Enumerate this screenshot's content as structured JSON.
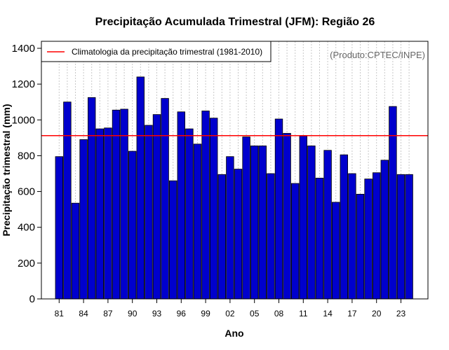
{
  "chart_data": {
    "type": "bar",
    "title": "Precipitação Acumulada Trimestral (JFM): Região 26",
    "xlabel": "Ano",
    "ylabel": "Precipitação trimestral (mm)",
    "source": "(Produto:CPTEC/INPE)",
    "legend": {
      "label": "Climatologia da precipitação trimestral (1981-2010)",
      "position": "top-left"
    },
    "ylim": [
      0,
      1450
    ],
    "yticks": [
      0,
      200,
      400,
      600,
      800,
      1000,
      1200,
      1400
    ],
    "xtick_labels": [
      "81",
      "84",
      "87",
      "90",
      "93",
      "96",
      "99",
      "02",
      "05",
      "08",
      "11",
      "14",
      "17",
      "20",
      "23"
    ],
    "xtick_every": 3,
    "categories": [
      "1981",
      "1982",
      "1983",
      "1984",
      "1985",
      "1986",
      "1987",
      "1988",
      "1989",
      "1990",
      "1991",
      "1992",
      "1993",
      "1994",
      "1995",
      "1996",
      "1997",
      "1998",
      "1999",
      "2000",
      "2001",
      "2002",
      "2003",
      "2004",
      "2005",
      "2006",
      "2007",
      "2008",
      "2009",
      "2010",
      "2011",
      "2012",
      "2013",
      "2014",
      "2015",
      "2016",
      "2017",
      "2018",
      "2019",
      "2020",
      "2021",
      "2022",
      "2023",
      "2024"
    ],
    "values": [
      795,
      1100,
      535,
      890,
      1125,
      950,
      955,
      1055,
      1060,
      825,
      1240,
      970,
      1030,
      1120,
      660,
      1045,
      950,
      865,
      1050,
      1010,
      695,
      795,
      725,
      905,
      855,
      855,
      700,
      1005,
      925,
      645,
      910,
      855,
      675,
      830,
      540,
      805,
      700,
      585,
      670,
      705,
      775,
      1075,
      695,
      695
    ],
    "climatology": 912,
    "bar_color": "#0000cd",
    "climatology_color": "#ff0000",
    "grid": "vertical dotted"
  }
}
